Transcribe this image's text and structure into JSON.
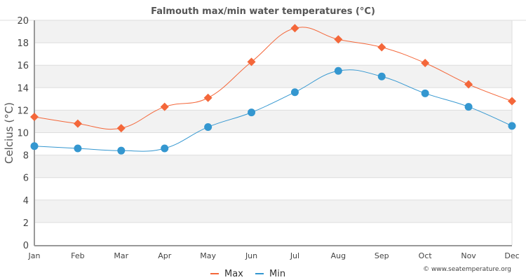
{
  "chart_data": {
    "type": "line",
    "title": "Falmouth max/min water temperatures (°C)",
    "xlabel": "",
    "ylabel": "Celcius (°C)",
    "ylim": [
      0,
      20
    ],
    "yticks": [
      0,
      2,
      4,
      6,
      8,
      10,
      12,
      14,
      16,
      18,
      20
    ],
    "grid": true,
    "legend_position": "bottom-center",
    "categories": [
      "Jan",
      "Feb",
      "Mar",
      "Apr",
      "May",
      "Jun",
      "Jul",
      "Aug",
      "Sep",
      "Oct",
      "Nov",
      "Dec"
    ],
    "series": [
      {
        "name": "Max",
        "color": "#f4673a",
        "marker": "diamond",
        "values": [
          11.4,
          10.8,
          10.4,
          12.3,
          13.1,
          16.3,
          19.3,
          18.3,
          17.6,
          16.2,
          14.3,
          12.8
        ]
      },
      {
        "name": "Min",
        "color": "#3497d0",
        "marker": "circle",
        "values": [
          8.8,
          8.6,
          8.4,
          8.6,
          10.5,
          11.8,
          13.6,
          15.5,
          15.0,
          13.5,
          12.3,
          10.6
        ]
      }
    ],
    "credit": "© www.seatemperature.org"
  },
  "colors": {
    "band": "#f2f2f2",
    "grid": "#dddddd",
    "axis": "#999999"
  }
}
